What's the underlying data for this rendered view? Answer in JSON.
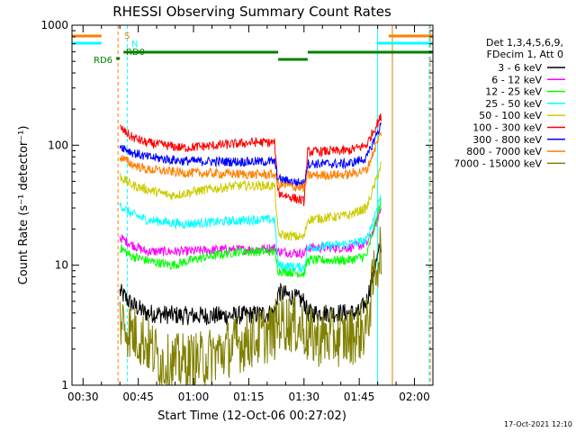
{
  "chart_data": {
    "type": "line",
    "title": "RHESSI Observing Summary Count Rates",
    "xlabel": "Start Time (12-Oct-06 00:27:02)",
    "ylabel": "Count Rate (s⁻¹ detector⁻¹)",
    "yscale": "log",
    "ylim": [
      1,
      1000
    ],
    "xlim_minutes_after_0027": [
      0,
      98
    ],
    "x_ticks": [
      "00:30",
      "00:45",
      "01:00",
      "01:15",
      "01:30",
      "01:45",
      "02:00"
    ],
    "y_ticks": [
      "1",
      "10",
      "100",
      "1000"
    ],
    "legend_header": [
      "Det 1,3,4,5,6,9,",
      "FDecim 1, Att 0"
    ],
    "series": [
      {
        "name": "3 - 6 keV",
        "color": "#000000",
        "points": [
          [
            13,
            6.0
          ],
          [
            16,
            4.8
          ],
          [
            20,
            4.0
          ],
          [
            30,
            3.8
          ],
          [
            45,
            3.8
          ],
          [
            55,
            4.0
          ],
          [
            56,
            6.0
          ],
          [
            63,
            5.0
          ],
          [
            64,
            4.0
          ],
          [
            78,
            4.0
          ],
          [
            80,
            5.0
          ],
          [
            82,
            9.0
          ],
          [
            84,
            15.0
          ]
        ]
      },
      {
        "name": "6 - 12 keV",
        "color": "#ff00ff",
        "points": [
          [
            13,
            17
          ],
          [
            16,
            15
          ],
          [
            20,
            13
          ],
          [
            30,
            13
          ],
          [
            40,
            13.5
          ],
          [
            50,
            13.5
          ],
          [
            55,
            14
          ],
          [
            56,
            13
          ],
          [
            63,
            12.5
          ],
          [
            64,
            14
          ],
          [
            75,
            14
          ],
          [
            80,
            15
          ],
          [
            82,
            20
          ],
          [
            84,
            30
          ]
        ]
      },
      {
        "name": "12 - 25 keV",
        "color": "#00ff00",
        "points": [
          [
            13,
            14
          ],
          [
            16,
            12
          ],
          [
            20,
            11
          ],
          [
            27,
            10
          ],
          [
            35,
            11.5
          ],
          [
            45,
            13
          ],
          [
            55,
            13
          ],
          [
            56,
            9
          ],
          [
            63,
            8.5
          ],
          [
            64,
            11
          ],
          [
            75,
            11
          ],
          [
            80,
            12
          ],
          [
            82,
            20
          ],
          [
            84,
            35
          ]
        ]
      },
      {
        "name": "25 - 50 keV",
        "color": "#00ffff",
        "points": [
          [
            13,
            32
          ],
          [
            16,
            27
          ],
          [
            20,
            24
          ],
          [
            30,
            22
          ],
          [
            40,
            23
          ],
          [
            50,
            24
          ],
          [
            55,
            24
          ],
          [
            56,
            10
          ],
          [
            63,
            9.5
          ],
          [
            64,
            14
          ],
          [
            75,
            15
          ],
          [
            80,
            16
          ],
          [
            82,
            25
          ],
          [
            84,
            40
          ]
        ]
      },
      {
        "name": "50 - 100 keV",
        "color": "#cccc00",
        "points": [
          [
            13,
            55
          ],
          [
            16,
            47
          ],
          [
            20,
            43
          ],
          [
            27,
            38
          ],
          [
            35,
            42
          ],
          [
            45,
            46
          ],
          [
            55,
            46
          ],
          [
            56,
            18
          ],
          [
            63,
            17
          ],
          [
            64,
            24
          ],
          [
            75,
            26
          ],
          [
            80,
            30
          ],
          [
            82,
            45
          ],
          [
            84,
            70
          ]
        ]
      },
      {
        "name": "100 - 300 keV",
        "color": "#ff0000",
        "points": [
          [
            13,
            140
          ],
          [
            16,
            118
          ],
          [
            20,
            105
          ],
          [
            30,
            95
          ],
          [
            40,
            100
          ],
          [
            50,
            106
          ],
          [
            55,
            105
          ],
          [
            56,
            40
          ],
          [
            63,
            34
          ],
          [
            64,
            88
          ],
          [
            75,
            90
          ],
          [
            80,
            100
          ],
          [
            82,
            135
          ],
          [
            84,
            175
          ]
        ]
      },
      {
        "name": "300 - 800 keV",
        "color": "#0000ff",
        "points": [
          [
            13,
            100
          ],
          [
            16,
            88
          ],
          [
            20,
            80
          ],
          [
            30,
            74
          ],
          [
            40,
            73
          ],
          [
            50,
            73
          ],
          [
            55,
            73
          ],
          [
            56,
            52
          ],
          [
            63,
            48
          ],
          [
            64,
            70
          ],
          [
            75,
            70
          ],
          [
            80,
            78
          ],
          [
            82,
            110
          ],
          [
            84,
            150
          ]
        ]
      },
      {
        "name": "800 - 7000 keV",
        "color": "#ff8000",
        "points": [
          [
            13,
            80
          ],
          [
            16,
            70
          ],
          [
            20,
            63
          ],
          [
            30,
            59
          ],
          [
            40,
            58
          ],
          [
            50,
            57
          ],
          [
            55,
            57
          ],
          [
            56,
            47
          ],
          [
            63,
            44
          ],
          [
            64,
            56
          ],
          [
            75,
            57
          ],
          [
            80,
            62
          ],
          [
            82,
            90
          ],
          [
            84,
            130
          ]
        ]
      },
      {
        "name": "7000 - 15000 keV",
        "color": "#808000",
        "points": [
          [
            13,
            3.5
          ],
          [
            16,
            2.8
          ],
          [
            20,
            2.3
          ],
          [
            25,
            1.5
          ],
          [
            35,
            1.6
          ],
          [
            45,
            2.2
          ],
          [
            55,
            2.8
          ],
          [
            56,
            3.5
          ],
          [
            63,
            3.0
          ],
          [
            64,
            2.5
          ],
          [
            75,
            2.5
          ],
          [
            80,
            3.0
          ],
          [
            82,
            8
          ],
          [
            84,
            15
          ]
        ]
      }
    ],
    "annotations": {
      "s_label": "S",
      "n_label": "N",
      "rd6_label": "RD6",
      "rd0_label": "RD0"
    },
    "flag_bars": [
      {
        "label": "S",
        "color": "#ff8000",
        "segments": [
          [
            0,
            8
          ],
          [
            86,
            98
          ]
        ]
      },
      {
        "label": "N",
        "color": "#00ffff",
        "segments": [
          [
            0,
            8
          ],
          [
            83,
            98
          ]
        ]
      },
      {
        "label": "RD0",
        "color": "#008000",
        "segments": [
          [
            14,
            56
          ],
          [
            64,
            98
          ]
        ]
      },
      {
        "label": "RD0",
        "color": "#008000",
        "segments": [
          [
            56,
            64
          ]
        ]
      },
      {
        "label": "RD6",
        "color": "#008000",
        "segments": [
          [
            12,
            13
          ]
        ]
      }
    ],
    "vlines": [
      {
        "x": 0,
        "color": "#00ffff",
        "style": "solid"
      },
      {
        "x": 12.5,
        "color": "#ff8000",
        "style": "dashed"
      },
      {
        "x": 15,
        "color": "#00ffff",
        "style": "dashed"
      },
      {
        "x": 83,
        "color": "#00ffff",
        "style": "solid"
      },
      {
        "x": 87,
        "color": "#cc8800",
        "style": "solid"
      },
      {
        "x": 97,
        "color": "#00ffff",
        "style": "dashed"
      },
      {
        "x": 97.3,
        "color": "#ff8000",
        "style": "dashed"
      }
    ]
  },
  "footer": {
    "timestamp": "17-Oct-2021 12:10"
  }
}
